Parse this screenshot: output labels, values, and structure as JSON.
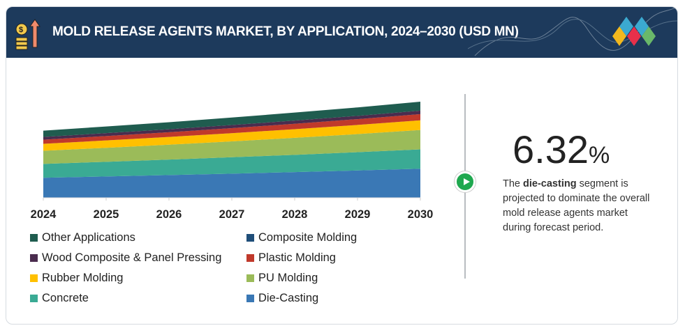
{
  "header": {
    "title": "MOLD RELEASE AGENTS MARKET, BY APPLICATION, 2024–2030 (USD MN)"
  },
  "stat": {
    "value": "6.32",
    "unit": "%",
    "desc_bold": "die-casting",
    "desc_pre": "The ",
    "desc_post": " segment is projected to dominate the overall mold release agents market during forecast period."
  },
  "chart_data": {
    "type": "area",
    "stacked": true,
    "title": "MOLD RELEASE AGENTS MARKET, BY APPLICATION, 2024–2030 (USD MN)",
    "x": [
      "2024",
      "2025",
      "2026",
      "2027",
      "2028",
      "2029",
      "2030"
    ],
    "ylim": [
      0,
      145
    ],
    "series": [
      {
        "name": "Die-Casting",
        "color": "#3a78b5",
        "values": [
          29,
          30.8,
          32.8,
          34.9,
          37.1,
          39.5,
          42
        ]
      },
      {
        "name": "Concrete",
        "color": "#3aaa94",
        "values": [
          20,
          21.2,
          22.4,
          23.7,
          25,
          26.4,
          28
        ]
      },
      {
        "name": "PU Molding",
        "color": "#9bbb59",
        "values": [
          19,
          20.3,
          21.6,
          23,
          24.6,
          26.2,
          28
        ]
      },
      {
        "name": "Rubber Molding",
        "color": "#ffc000",
        "values": [
          10,
          10.6,
          11.2,
          11.8,
          12.5,
          13.2,
          14
        ]
      },
      {
        "name": "Plastic Molding",
        "color": "#c0392b",
        "values": [
          6,
          6.4,
          6.8,
          7.3,
          7.8,
          8.4,
          9
        ]
      },
      {
        "name": "Wood Composite & Panel Pressing",
        "color": "#4a2c4e",
        "values": [
          4,
          4.2,
          4.3,
          4.5,
          4.7,
          4.8,
          5
        ]
      },
      {
        "name": "Composite Molding",
        "color": "#1f4e79",
        "values": [
          0,
          0,
          0,
          0,
          0,
          0,
          0
        ]
      },
      {
        "name": "Other Applications",
        "color": "#1f5c4f",
        "values": [
          9,
          9.6,
          10.2,
          10.8,
          11.5,
          12.2,
          13
        ]
      }
    ],
    "legend": [
      {
        "name": "Other Applications",
        "color": "#1f5c4f"
      },
      {
        "name": "Composite Molding",
        "color": "#1f4e79"
      },
      {
        "name": "Wood Composite & Panel Pressing",
        "color": "#4a2c4e"
      },
      {
        "name": "Plastic Molding",
        "color": "#c0392b"
      },
      {
        "name": "Rubber Molding",
        "color": "#ffc000"
      },
      {
        "name": "PU Molding",
        "color": "#9bbb59"
      },
      {
        "name": "Concrete",
        "color": "#3aaa94"
      },
      {
        "name": "Die-Casting",
        "color": "#3a78b5"
      }
    ]
  }
}
